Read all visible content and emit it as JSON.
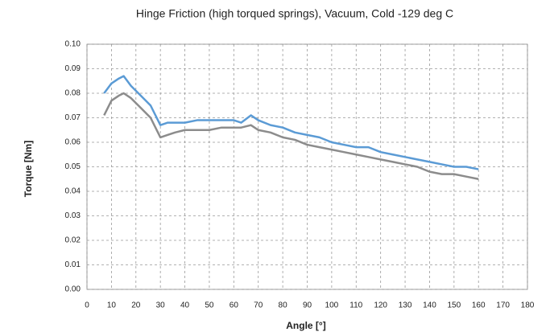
{
  "chart_data": {
    "type": "line",
    "title": "Hinge Friction (high torqued springs), Vacuum, Cold -129 deg C",
    "x_label": "Angle [°]",
    "y_label": "Torque [Nm]",
    "x": [
      7,
      10,
      13,
      15,
      18,
      22,
      26,
      30,
      33,
      36,
      40,
      45,
      50,
      55,
      60,
      63,
      67,
      70,
      75,
      80,
      85,
      90,
      95,
      100,
      105,
      110,
      115,
      120,
      125,
      130,
      135,
      140,
      145,
      150,
      155,
      160
    ],
    "series": [
      {
        "color": "#5b9bd5",
        "values": [
          0.08,
          0.084,
          0.086,
          0.087,
          0.083,
          0.079,
          0.075,
          0.067,
          0.068,
          0.068,
          0.068,
          0.069,
          0.069,
          0.069,
          0.069,
          0.068,
          0.071,
          0.069,
          0.067,
          0.066,
          0.064,
          0.063,
          0.062,
          0.06,
          0.059,
          0.058,
          0.058,
          0.056,
          0.055,
          0.054,
          0.053,
          0.052,
          0.051,
          0.05,
          0.05,
          0.049
        ]
      },
      {
        "color": "#8c8c8c",
        "values": [
          0.071,
          0.077,
          0.079,
          0.08,
          0.078,
          0.074,
          0.07,
          0.062,
          0.063,
          0.064,
          0.065,
          0.065,
          0.065,
          0.066,
          0.066,
          0.066,
          0.067,
          0.065,
          0.064,
          0.062,
          0.061,
          0.059,
          0.058,
          0.057,
          0.056,
          0.055,
          0.054,
          0.053,
          0.052,
          0.051,
          0.05,
          0.048,
          0.047,
          0.047,
          0.046,
          0.045
        ]
      }
    ],
    "xlim": [
      0,
      180
    ],
    "xticks": [
      0,
      10,
      20,
      30,
      40,
      50,
      60,
      70,
      80,
      90,
      100,
      110,
      120,
      130,
      140,
      150,
      160,
      170,
      180
    ],
    "ylim": [
      0,
      0.1
    ],
    "yticks": [
      {
        "value": 0,
        "label": "0.00"
      },
      0.01,
      0.02,
      0.03,
      0.04,
      0.05,
      0.06,
      0.07,
      0.08,
      0.09,
      {
        "value": 0.1,
        "label": "0.10"
      }
    ],
    "grid": true
  }
}
